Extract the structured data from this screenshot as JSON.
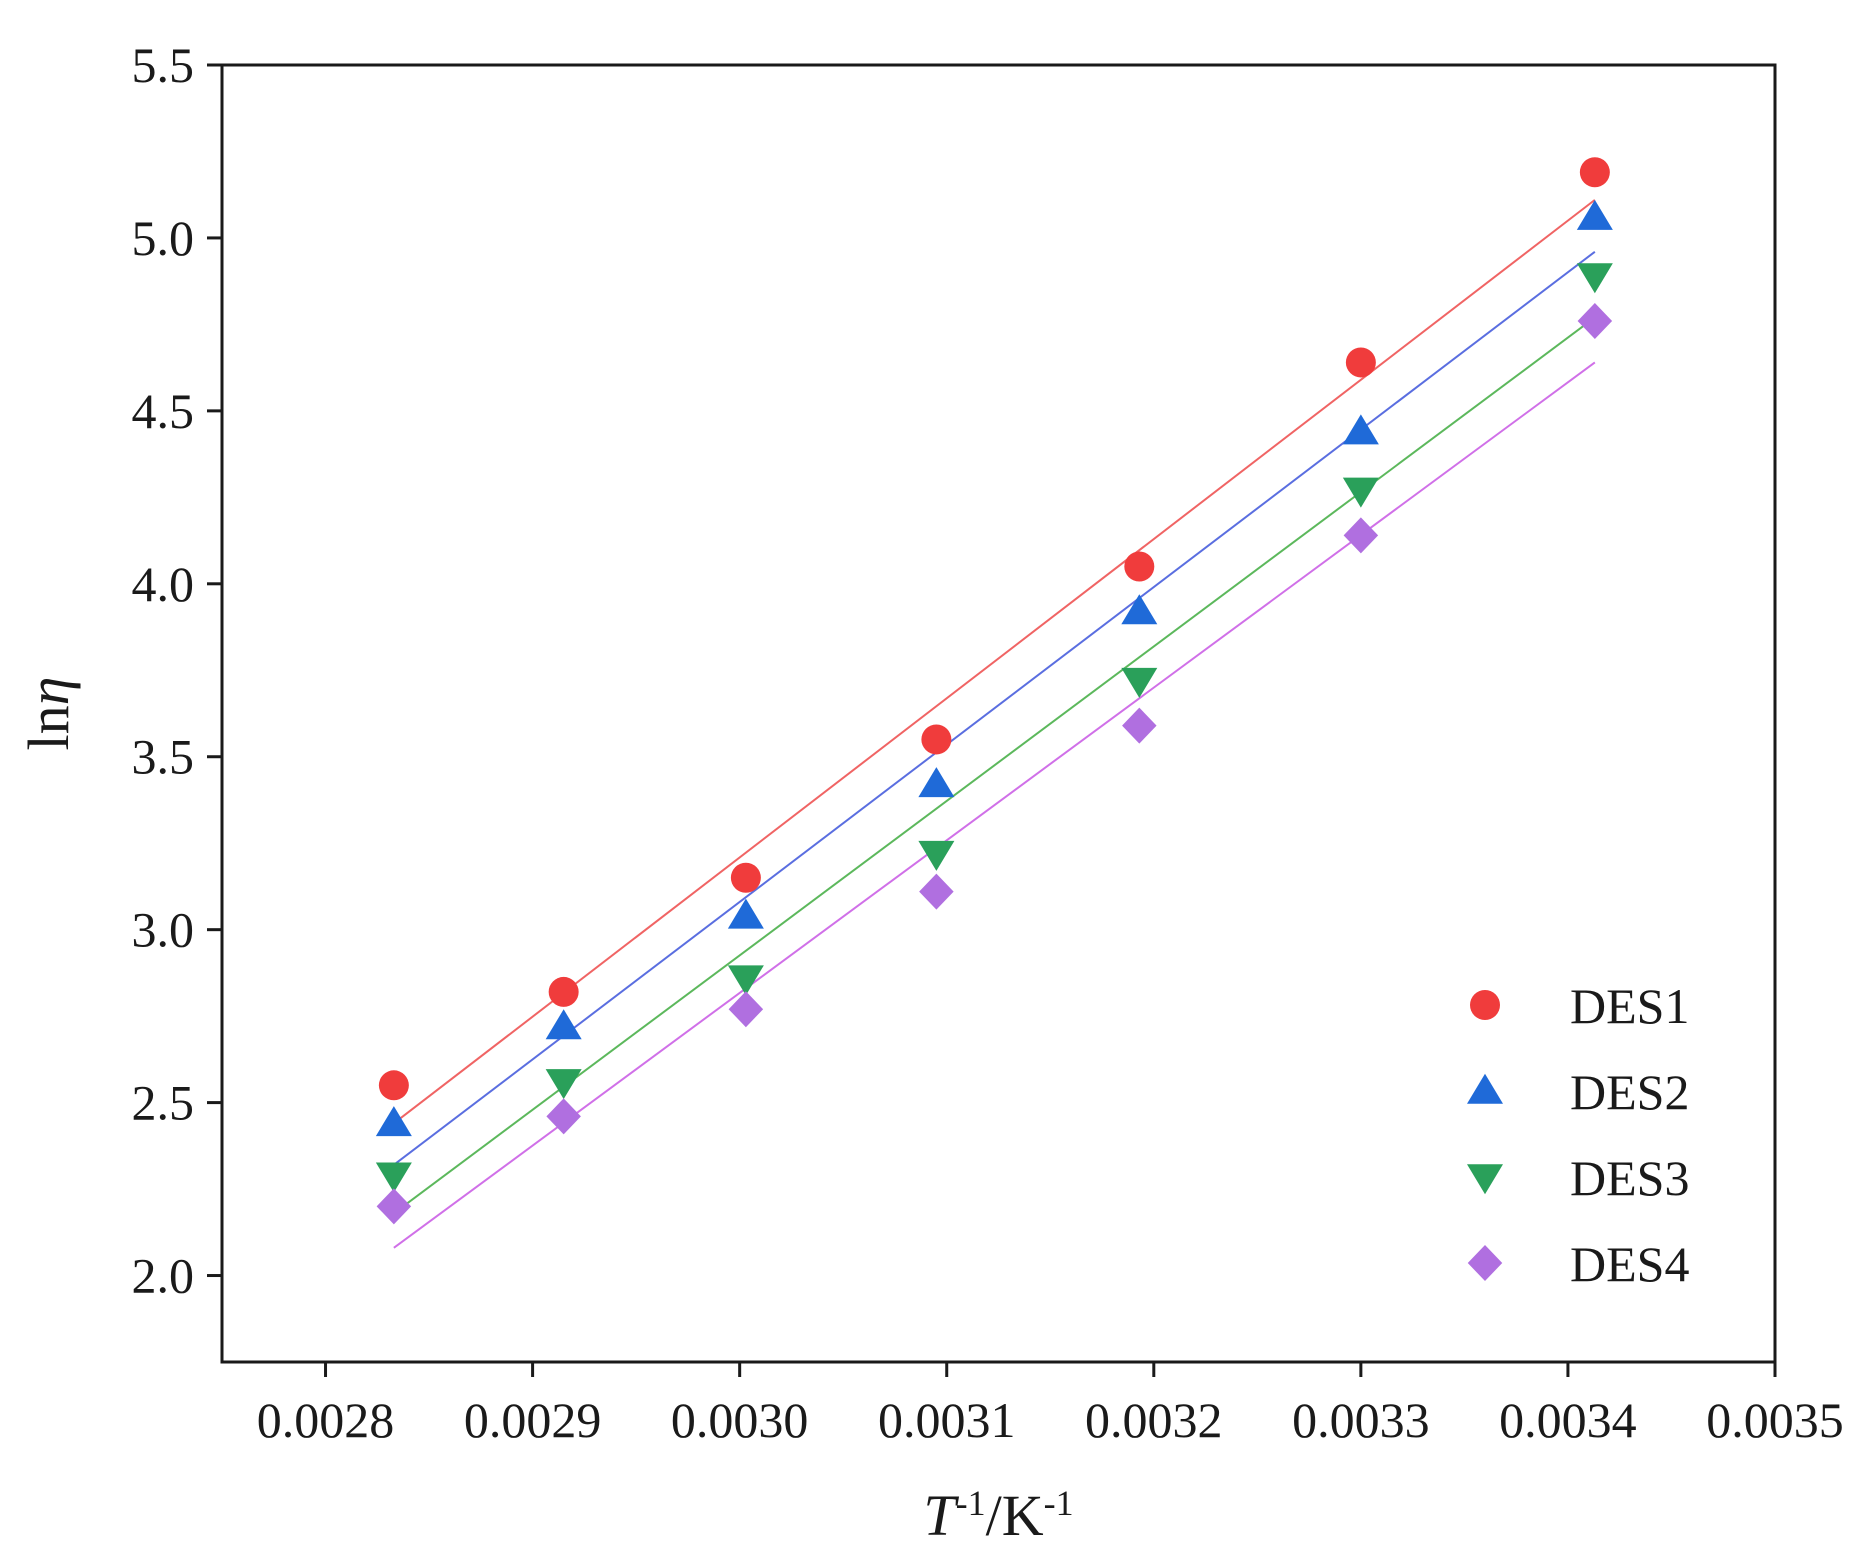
{
  "chart_data": {
    "type": "scatter",
    "title": "",
    "xlabel": {
      "base": "T",
      "base_sup": "-1",
      "sep": "/K",
      "unit_sup": "-1"
    },
    "ylabel": {
      "prefix": "ln",
      "symbol": "η"
    },
    "xlim": [
      0.00275,
      0.0035
    ],
    "ylim": [
      1.75,
      5.5
    ],
    "xticks": [
      0.0028,
      0.0029,
      0.003,
      0.0031,
      0.0032,
      0.0033,
      0.0034,
      0.0035
    ],
    "xtick_labels": [
      "0.0028",
      "0.0029",
      "0.0030",
      "0.0031",
      "0.0032",
      "0.0033",
      "0.0034",
      "0.0035"
    ],
    "yticks": [
      2.0,
      2.5,
      3.0,
      3.5,
      4.0,
      4.5,
      5.0,
      5.5
    ],
    "ytick_labels": [
      "2.0",
      "2.5",
      "3.0",
      "3.5",
      "4.0",
      "4.5",
      "5.0",
      "5.5"
    ],
    "grid": false,
    "legend_position": "bottom-right",
    "x": [
      0.002833,
      0.002915,
      0.003003,
      0.003095,
      0.003193,
      0.0033,
      0.003413
    ],
    "series": [
      {
        "name": "DES1",
        "marker": "circle",
        "color": "#f03c3c",
        "line_color": "#f06464",
        "values": [
          2.55,
          2.82,
          3.15,
          3.55,
          4.05,
          4.64,
          5.19
        ],
        "fit": {
          "x": [
            0.002833,
            0.003413
          ],
          "y": [
            2.44,
            5.11
          ]
        }
      },
      {
        "name": "DES2",
        "marker": "triangle-up",
        "color": "#1f6ad8",
        "line_color": "#5a6ee0",
        "values": [
          2.44,
          2.72,
          3.04,
          3.42,
          3.92,
          4.44,
          5.06
        ],
        "fit": {
          "x": [
            0.002833,
            0.003413
          ],
          "y": [
            2.32,
            4.96
          ]
        }
      },
      {
        "name": "DES3",
        "marker": "triangle-down",
        "color": "#2aa05a",
        "line_color": "#5cb85c",
        "values": [
          2.29,
          2.56,
          2.86,
          3.22,
          3.72,
          4.27,
          4.89
        ],
        "fit": {
          "x": [
            0.002833,
            0.003413
          ],
          "y": [
            2.18,
            4.77
          ]
        }
      },
      {
        "name": "DES4",
        "marker": "diamond",
        "color": "#b06fe0",
        "line_color": "#d070e8",
        "values": [
          2.2,
          2.46,
          2.77,
          3.11,
          3.59,
          4.14,
          4.76
        ],
        "fit": {
          "x": [
            0.002833,
            0.003413
          ],
          "y": [
            2.08,
            4.64
          ]
        }
      }
    ]
  }
}
